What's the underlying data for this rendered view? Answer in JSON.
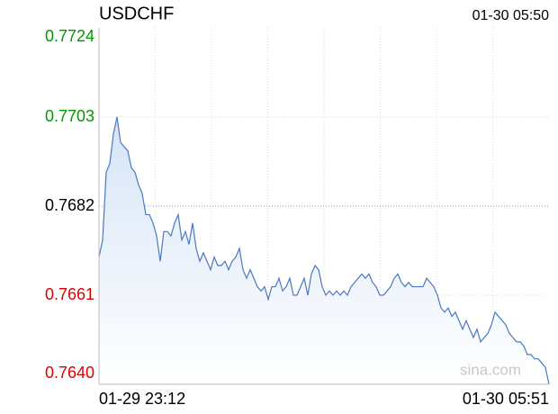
{
  "chart_data": {
    "type": "line",
    "title": "USDCHF",
    "timestamp": "01-30 05:50",
    "watermark": "sina.com",
    "categories": [
      "01-29 23:12",
      null,
      null,
      null,
      null,
      null,
      null,
      null,
      null,
      null,
      null,
      null,
      null,
      null,
      null,
      null,
      null,
      null,
      null,
      null,
      null,
      null,
      null,
      null,
      null,
      null,
      null,
      null,
      null,
      null,
      null,
      null,
      null,
      null,
      null,
      null,
      null,
      null,
      null,
      null,
      null,
      null,
      null,
      null,
      null,
      null,
      null,
      null,
      null,
      null,
      null,
      null,
      null,
      null,
      null,
      null,
      null,
      null,
      null,
      null,
      null,
      null,
      null,
      null,
      null,
      null,
      null,
      null,
      null,
      null,
      null,
      null,
      null,
      null,
      null,
      null,
      null,
      null,
      null,
      null,
      null,
      null,
      null,
      null,
      null,
      null,
      null,
      null,
      null,
      null,
      null,
      null,
      null,
      null,
      null,
      null,
      null,
      null,
      null,
      null,
      null,
      null,
      null,
      null,
      null,
      null,
      null,
      null,
      null,
      null,
      null,
      null,
      null,
      null,
      null,
      null,
      null,
      null,
      null,
      null,
      null,
      null,
      null,
      null,
      null,
      "01-30 05:51"
    ],
    "series": [
      {
        "name": "USDCHF",
        "color": "#4a78c0",
        "values": [
          0.767,
          0.7674,
          0.769,
          0.7692,
          0.7699,
          0.7703,
          0.7697,
          0.7696,
          0.7695,
          0.7691,
          0.769,
          0.7687,
          0.7685,
          0.768,
          0.768,
          0.7678,
          0.7675,
          0.7669,
          0.7676,
          0.7676,
          0.7675,
          0.7678,
          0.768,
          0.7674,
          0.7676,
          0.7673,
          0.7678,
          0.7672,
          0.7669,
          0.7671,
          0.7669,
          0.7667,
          0.767,
          0.7668,
          0.7668,
          0.7669,
          0.7667,
          0.7669,
          0.767,
          0.7672,
          0.7667,
          0.7665,
          0.7667,
          0.7665,
          0.7663,
          0.7662,
          0.7663,
          0.766,
          0.7663,
          0.7663,
          0.7665,
          0.7662,
          0.7663,
          0.7665,
          0.7661,
          0.7661,
          0.7663,
          0.7665,
          0.7661,
          0.7666,
          0.7668,
          0.7667,
          0.7663,
          0.7661,
          0.7662,
          0.7661,
          0.7662,
          0.7661,
          0.7662,
          0.7661,
          0.7663,
          0.7664,
          0.7665,
          0.7666,
          0.7665,
          0.7666,
          0.7664,
          0.7663,
          0.7661,
          0.7661,
          0.7662,
          0.7663,
          0.7665,
          0.7666,
          0.7664,
          0.7663,
          0.7664,
          0.7663,
          0.7663,
          0.7663,
          0.7663,
          0.7665,
          0.7664,
          0.7663,
          0.7661,
          0.7658,
          0.7657,
          0.7658,
          0.7656,
          0.7657,
          0.7655,
          0.7653,
          0.7655,
          0.7653,
          0.7651,
          0.7653,
          0.765,
          0.7651,
          0.7652,
          0.7654,
          0.7657,
          0.7656,
          0.7655,
          0.7654,
          0.7652,
          0.7651,
          0.765,
          0.765,
          0.7649,
          0.7647,
          0.7647,
          0.7646,
          0.7646,
          0.7645,
          0.7644,
          0.764
        ]
      }
    ],
    "ylim": [
      0.764,
      0.7724
    ],
    "yticks": [
      0.7724,
      0.7703,
      0.7682,
      0.7661,
      {
        "value": 0.764,
        "label": "0.7640"
      }
    ],
    "ytick_colors": [
      "#009900",
      "#009900",
      "#000000",
      "#dd0000",
      "#dd0000"
    ],
    "grid": true
  }
}
